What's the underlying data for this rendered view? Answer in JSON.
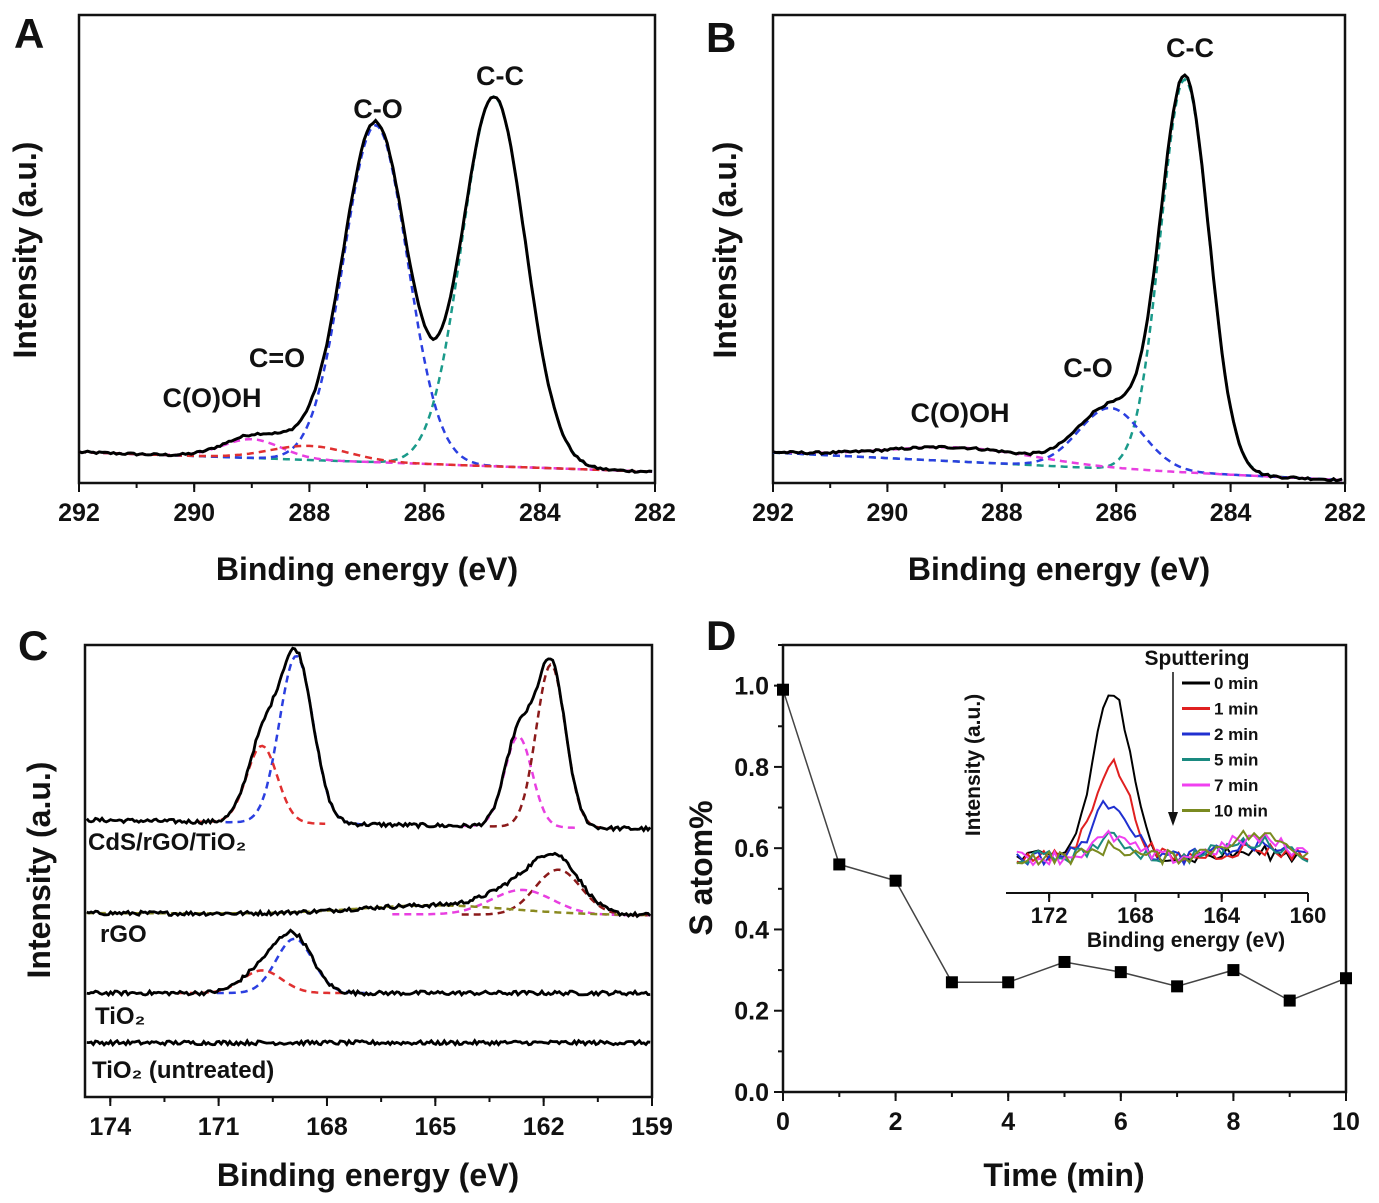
{
  "chart_data": [
    {
      "panel": "A",
      "type": "line",
      "xlabel": "Binding energy (eV)",
      "ylabel": "Intensity (a.u.)",
      "xlim": [
        292,
        282
      ],
      "xticks": [
        292,
        290,
        288,
        286,
        284,
        282
      ],
      "ylim": [
        0,
        100
      ],
      "background": [
        [
          292,
          6.6
        ],
        [
          282,
          2.4
        ]
      ],
      "components": [
        {
          "color": "#1a9a8a",
          "center": 284.8,
          "amplitude": 79,
          "fwhm": 1.3
        },
        {
          "color": "#2b3fe0",
          "center": 286.85,
          "amplitude": 72,
          "fwhm": 1.3
        },
        {
          "color": "#e83fe0",
          "center": 289.0,
          "amplitude": 4,
          "fwhm": 1.2
        },
        {
          "color": "#e03030",
          "center": 288.0,
          "amplitude": 3,
          "fwhm": 1.6
        }
      ],
      "annotations": [
        "C-C",
        "C-O",
        "C=O",
        "C(O)OH"
      ]
    },
    {
      "panel": "B",
      "type": "line",
      "xlabel": "Binding energy (eV)",
      "ylabel": "Intensity (a.u.)",
      "xlim": [
        292,
        282
      ],
      "xticks": [
        292,
        290,
        288,
        286,
        284,
        282
      ],
      "ylim": [
        0,
        100
      ],
      "background": [
        [
          292,
          6.5
        ],
        [
          282,
          0.6
        ]
      ],
      "components": [
        {
          "color": "#1a9a8a",
          "center": 284.8,
          "amplitude": 84,
          "fwhm": 1.0
        },
        {
          "color": "#2b3fe0",
          "center": 286.1,
          "amplitude": 13,
          "fwhm": 1.3
        },
        {
          "color": "#e83fe0",
          "center": 288.7,
          "amplitude": 3,
          "fwhm": 3.0
        }
      ],
      "annotations": [
        "C-C",
        "C-O",
        "C(O)OH"
      ]
    },
    {
      "panel": "C",
      "type": "line",
      "xlabel": "Binding energy (eV)",
      "ylabel": "Intensity (a.u.)",
      "xlim": [
        174.7,
        159
      ],
      "xticks": [
        174,
        171,
        168,
        165,
        162,
        159
      ],
      "ylim": [
        0,
        100
      ],
      "series": [
        {
          "name": "CdS/rGO/TiO₂",
          "baseline": [
            61.3,
            59.3
          ],
          "components": [
            {
              "color": "#2b3fe0",
              "center": 168.85,
              "amplitude": 37,
              "fwhm": 1.1
            },
            {
              "color": "#e03030",
              "center": 169.8,
              "amplitude": 17,
              "fwhm": 1.0
            },
            {
              "color": "#e83fe0",
              "center": 162.7,
              "amplitude": 20,
              "fwhm": 0.9
            },
            {
              "color": "#8b1a1a",
              "center": 161.8,
              "amplitude": 36,
              "fwhm": 0.95
            }
          ]
        },
        {
          "name": "rGO",
          "baseline": [
            40.7,
            40.2
          ],
          "components": [
            {
              "color": "#8b1a1a",
              "center": 161.6,
              "amplitude": 10,
              "fwhm": 1.5
            },
            {
              "color": "#e83fe0",
              "center": 162.6,
              "amplitude": 5.5,
              "fwhm": 2.0
            },
            {
              "color": "#8a8a20",
              "center": 165.0,
              "amplitude": 2,
              "fwhm": 5.0
            }
          ]
        },
        {
          "name": "TiO₂",
          "baseline": [
            23,
            23
          ],
          "components": [
            {
              "color": "#2b3fe0",
              "center": 168.9,
              "amplitude": 12,
              "fwhm": 1.2
            },
            {
              "color": "#e03030",
              "center": 169.8,
              "amplitude": 5,
              "fwhm": 1.3
            }
          ]
        },
        {
          "name": "TiO₂ (untreated)",
          "baseline": [
            12,
            12
          ],
          "components": []
        }
      ]
    },
    {
      "panel": "D",
      "type": "line",
      "xlabel": "Time (min)",
      "ylabel": "S atom%",
      "xlim": [
        0,
        10
      ],
      "ylim": [
        0,
        1.1
      ],
      "xticks": [
        0,
        2,
        4,
        6,
        8,
        10
      ],
      "yticks": [
        "0.0",
        "0.2",
        "0.4",
        "0.6",
        "0.8",
        "1.0"
      ],
      "x": [
        0,
        1,
        2,
        3,
        4,
        5,
        6,
        7,
        8,
        9,
        10
      ],
      "y": [
        0.99,
        0.56,
        0.52,
        0.27,
        0.27,
        0.32,
        0.295,
        0.26,
        0.3,
        0.225,
        0.28
      ],
      "inset": {
        "type": "line",
        "xlabel": "Binding energy (eV)",
        "ylabel": "Intensity (a.u.)",
        "xlim": [
          174,
          160
        ],
        "xticks": [
          172,
          168,
          164,
          160
        ],
        "legend_title": "Sputtering",
        "legend_position": "top-right",
        "series": [
          {
            "name": "0 min",
            "color": "#000000",
            "peak": 0.8
          },
          {
            "name": "1 min",
            "color": "#e02020",
            "peak": 0.45
          },
          {
            "name": "2 min",
            "color": "#2030d0",
            "peak": 0.27
          },
          {
            "name": "5 min",
            "color": "#1a8a80",
            "peak": 0.09
          },
          {
            "name": "7 min",
            "color": "#f040f0",
            "peak": 0.1
          },
          {
            "name": "10 min",
            "color": "#7a8a20",
            "peak": 0.05
          }
        ]
      }
    }
  ]
}
